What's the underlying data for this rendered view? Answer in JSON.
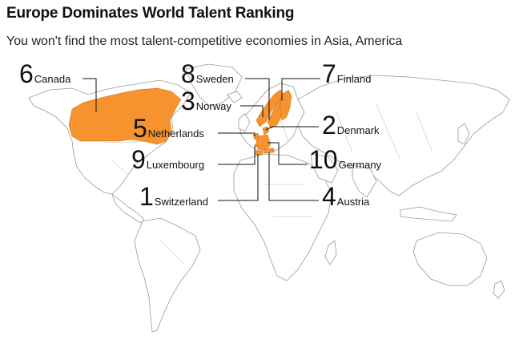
{
  "header": {
    "title": "Europe Dominates World Talent Ranking",
    "subtitle": "You won't find the most talent-competitive economies in Asia, America"
  },
  "colors": {
    "highlight": "#f7932e",
    "land_stroke": "#9a9a9a",
    "leader": "#111111"
  },
  "rankings": [
    {
      "rank": "6",
      "country": "Canada"
    },
    {
      "rank": "8",
      "country": "Sweden"
    },
    {
      "rank": "7",
      "country": "Finland"
    },
    {
      "rank": "3",
      "country": "Norway"
    },
    {
      "rank": "5",
      "country": "Netherlands"
    },
    {
      "rank": "2",
      "country": "Denmark"
    },
    {
      "rank": "9",
      "country": "Luxembourg"
    },
    {
      "rank": "10",
      "country": "Germany"
    },
    {
      "rank": "1",
      "country": "Switzerland"
    },
    {
      "rank": "4",
      "country": "Austria"
    }
  ]
}
